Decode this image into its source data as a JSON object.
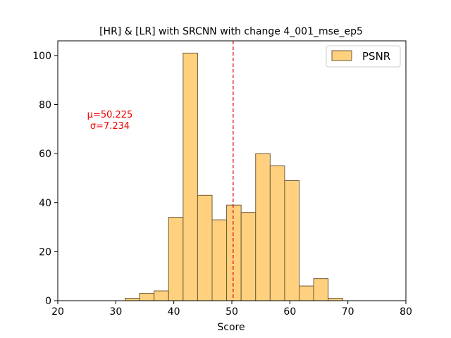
{
  "chart_data": {
    "type": "bar",
    "title": "[HR] & [LR] with SRCNN with change 4_001_mse_ep5",
    "xlabel": "Score",
    "ylabel": "",
    "xlim": [
      20,
      80
    ],
    "ylim": [
      0,
      106
    ],
    "xticks": [
      "20",
      "30",
      "40",
      "50",
      "60",
      "70",
      "80"
    ],
    "yticks": [
      "0",
      "20",
      "40",
      "60",
      "80",
      "100"
    ],
    "bin_edges": [
      31.6,
      34.1,
      36.6,
      39.1,
      41.6,
      44.1,
      46.6,
      49.1,
      51.6,
      54.1,
      56.6,
      59.1,
      61.6,
      64.1,
      66.6,
      69.1
    ],
    "series": [
      {
        "name": "PSNR",
        "values": [
          1,
          3,
          4,
          34,
          101,
          43,
          33,
          39,
          36,
          60,
          55,
          49,
          6,
          9,
          1
        ]
      }
    ],
    "mean_line_x": 50.225,
    "annotation": {
      "mu": "μ=50.225",
      "sigma": "σ=7.234"
    },
    "legend_position": "top-right",
    "grid": false,
    "colors": {
      "bar_fill": "#ffd17f",
      "bar_edge": "#6e5a3a",
      "mean_line": "#dd0000",
      "annotation": "#ee0000"
    }
  }
}
